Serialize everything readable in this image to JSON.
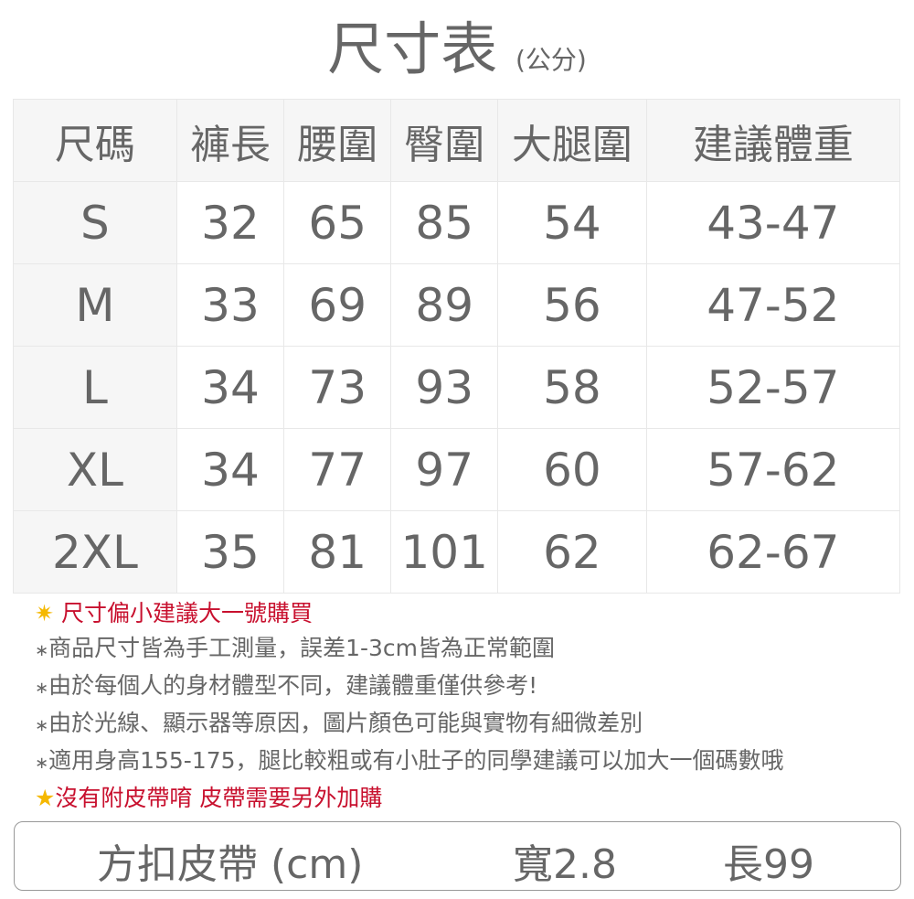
{
  "title": "尺寸表",
  "title_unit": "(公分)",
  "table": {
    "headers": [
      "尺碼",
      "褲長",
      "腰圍",
      "臀圍",
      "大腿圍",
      "建議體重"
    ],
    "rows": [
      [
        "S",
        "32",
        "65",
        "85",
        "54",
        "43-47"
      ],
      [
        "M",
        "33",
        "69",
        "89",
        "56",
        "47-52"
      ],
      [
        "L",
        "34",
        "73",
        "93",
        "58",
        "52-57"
      ],
      [
        "XL",
        "34",
        "77",
        "97",
        "60",
        "57-62"
      ],
      [
        "2XL",
        "35",
        "81",
        "101",
        "62",
        "62-67"
      ]
    ]
  },
  "notes": [
    {
      "marker": "✷",
      "text": "尺寸偏小建議大一號購買",
      "style": "red"
    },
    {
      "marker": "∗",
      "text": "商品尺寸皆為手工測量，誤差1-3cm皆為正常範圍",
      "style": "gray"
    },
    {
      "marker": "∗",
      "text": "由於每個人的身材體型不同，建議體重僅供參考!",
      "style": "gray"
    },
    {
      "marker": "∗",
      "text": "由於光線、顯示器等原因，圖片顏色可能與實物有細微差別",
      "style": "gray"
    },
    {
      "marker": "∗",
      "text": "適用身高155-175，腿比較粗或有小肚子的同學建議可以加大一個碼數哦",
      "style": "gray"
    },
    {
      "marker": "★",
      "text": "沒有附皮帶唷 皮帶需要另外加購",
      "style": "red"
    }
  ],
  "belt": {
    "name": "方扣皮帶 (cm)",
    "width": "寬2.8",
    "length": "長99"
  },
  "colors": {
    "text": "#666666",
    "accent_red": "#c8102e",
    "star": "#f5b800",
    "header_bg": "#f6f6f6"
  }
}
